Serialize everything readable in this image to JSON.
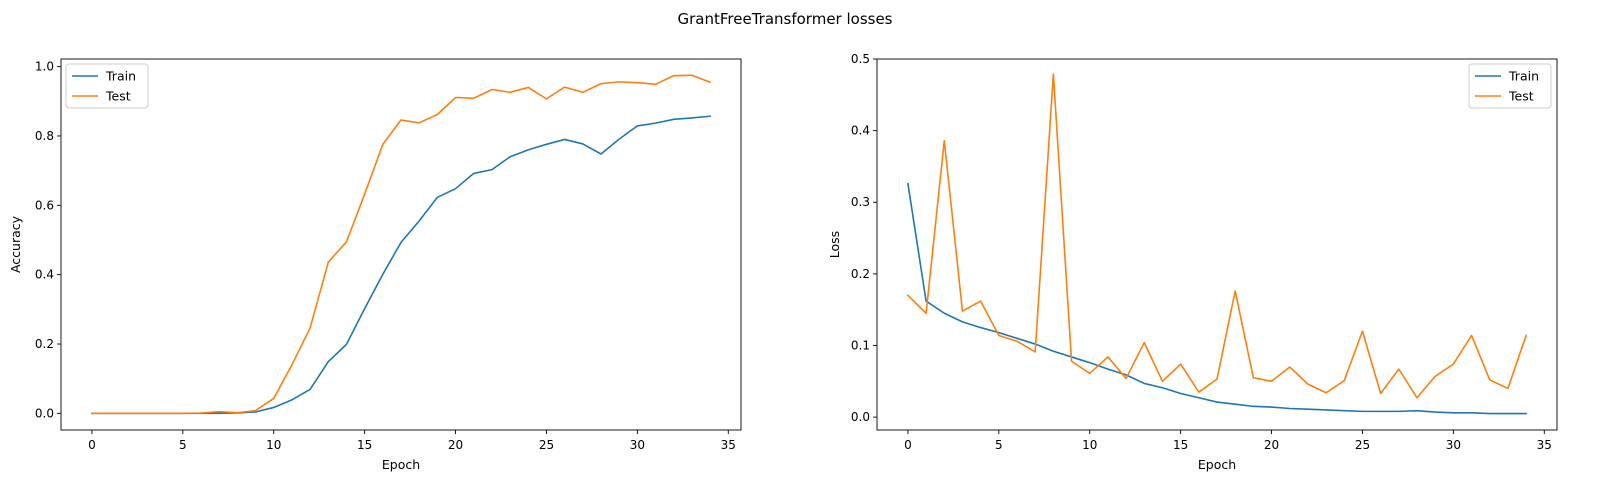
{
  "figure": {
    "title": "GrantFreeTransformer losses"
  },
  "chart_data": [
    {
      "type": "line",
      "xlabel": "Epoch",
      "ylabel": "Accuracy",
      "xlim": [
        -1.7,
        35.7
      ],
      "ylim": [
        -0.048,
        1.022
      ],
      "xticks": [
        0,
        5,
        10,
        15,
        20,
        25,
        30,
        35
      ],
      "xtick_labels": [
        "0",
        "5",
        "10",
        "15",
        "20",
        "25",
        "30",
        "35"
      ],
      "yticks": [
        0.0,
        0.2,
        0.4,
        0.6,
        0.8,
        1.0
      ],
      "ytick_labels": [
        "0.0",
        "0.2",
        "0.4",
        "0.6",
        "0.8",
        "1.0"
      ],
      "legend": {
        "position": "top-left"
      },
      "grid": false,
      "x": [
        0,
        1,
        2,
        3,
        4,
        5,
        6,
        7,
        8,
        9,
        10,
        11,
        12,
        13,
        14,
        15,
        16,
        17,
        18,
        19,
        20,
        21,
        22,
        23,
        24,
        25,
        26,
        27,
        28,
        29,
        30,
        31,
        32,
        33,
        34
      ],
      "series": [
        {
          "name": "Train",
          "color": "#1f77b4",
          "values": [
            0,
            0,
            0,
            0,
            0,
            0,
            0,
            0,
            0.001,
            0.004,
            0.017,
            0.039,
            0.069,
            0.149,
            0.199,
            0.302,
            0.401,
            0.493,
            0.555,
            0.623,
            0.648,
            0.692,
            0.703,
            0.74,
            0.76,
            0.776,
            0.79,
            0.777,
            0.748,
            0.791,
            0.829,
            0.837,
            0.848,
            0.852,
            0.857
          ]
        },
        {
          "name": "Test",
          "color": "#ff7f0e",
          "values": [
            0,
            0,
            0,
            0,
            0,
            0,
            0.001,
            0.005,
            0.002,
            0.008,
            0.043,
            0.14,
            0.246,
            0.436,
            0.495,
            0.632,
            0.776,
            0.846,
            0.838,
            0.862,
            0.911,
            0.909,
            0.934,
            0.926,
            0.94,
            0.907,
            0.941,
            0.926,
            0.951,
            0.956,
            0.954,
            0.949,
            0.974,
            0.975,
            0.955
          ]
        }
      ]
    },
    {
      "type": "line",
      "xlabel": "Epoch",
      "ylabel": "Loss",
      "xlim": [
        -1.7,
        35.7
      ],
      "ylim": [
        -0.018,
        0.5
      ],
      "xticks": [
        0,
        5,
        10,
        15,
        20,
        25,
        30,
        35
      ],
      "xtick_labels": [
        "0",
        "5",
        "10",
        "15",
        "20",
        "25",
        "30",
        "35"
      ],
      "yticks": [
        0.0,
        0.1,
        0.2,
        0.3,
        0.4,
        0.5
      ],
      "ytick_labels": [
        "0.0",
        "0.1",
        "0.2",
        "0.3",
        "0.4",
        "0.5"
      ],
      "legend": {
        "position": "top-right"
      },
      "grid": false,
      "x": [
        0,
        1,
        2,
        3,
        4,
        5,
        6,
        7,
        8,
        9,
        10,
        11,
        12,
        13,
        14,
        15,
        16,
        17,
        18,
        19,
        20,
        21,
        22,
        23,
        24,
        25,
        26,
        27,
        28,
        29,
        30,
        31,
        32,
        33,
        34
      ],
      "series": [
        {
          "name": "Train",
          "color": "#1f77b4",
          "values": [
            0.326,
            0.162,
            0.145,
            0.133,
            0.125,
            0.118,
            0.11,
            0.102,
            0.092,
            0.084,
            0.076,
            0.067,
            0.059,
            0.047,
            0.041,
            0.033,
            0.027,
            0.021,
            0.018,
            0.015,
            0.014,
            0.012,
            0.011,
            0.01,
            0.009,
            0.008,
            0.008,
            0.008,
            0.009,
            0.007,
            0.006,
            0.006,
            0.005,
            0.005,
            0.005
          ]
        },
        {
          "name": "Test",
          "color": "#ff7f0e",
          "values": [
            0.17,
            0.145,
            0.386,
            0.148,
            0.162,
            0.114,
            0.106,
            0.091,
            0.479,
            0.078,
            0.061,
            0.084,
            0.054,
            0.104,
            0.05,
            0.074,
            0.035,
            0.053,
            0.176,
            0.055,
            0.05,
            0.07,
            0.046,
            0.034,
            0.051,
            0.12,
            0.033,
            0.067,
            0.027,
            0.057,
            0.074,
            0.114,
            0.052,
            0.04,
            0.114
          ]
        }
      ]
    }
  ]
}
